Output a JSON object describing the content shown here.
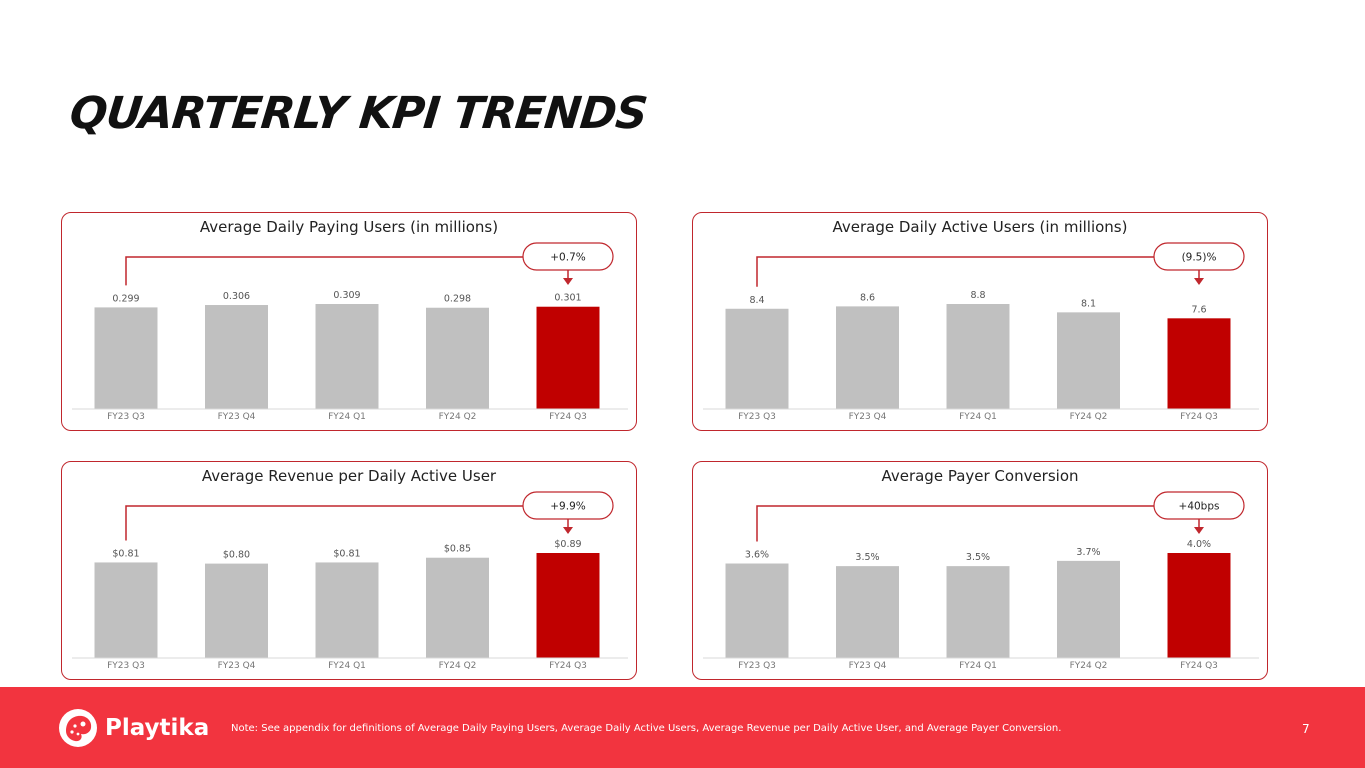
{
  "page": {
    "title": "QUARTERLY KPI TRENDS",
    "note": "Note:  See appendix for definitions of Average Daily Paying Users, Average Daily Active Users, Average Revenue per Daily Active User, and Average Payer Conversion.",
    "page_number": "7",
    "brand": "Playtika"
  },
  "colors": {
    "bar_default": "#c0c0c0",
    "bar_highlight": "#c00000",
    "panel_border": "#c0272d",
    "footer": "#f2343f"
  },
  "chart_data": [
    {
      "type": "bar",
      "title": "Average Daily Paying Users (in millions)",
      "categories": [
        "FY23 Q3",
        "FY23 Q4",
        "FY24 Q1",
        "FY24 Q2",
        "FY24 Q3"
      ],
      "values": [
        0.299,
        0.306,
        0.309,
        0.298,
        0.301
      ],
      "labels": [
        "0.299",
        "0.306",
        "0.309",
        "0.298",
        "0.301"
      ],
      "highlight_index": 4,
      "change_label": "+0.7%",
      "ylim": [
        0,
        0.309
      ]
    },
    {
      "type": "bar",
      "title": "Average Daily Active Users (in millions)",
      "categories": [
        "FY23 Q3",
        "FY23 Q4",
        "FY24 Q1",
        "FY24 Q2",
        "FY24 Q3"
      ],
      "values": [
        8.4,
        8.6,
        8.8,
        8.1,
        7.6
      ],
      "labels": [
        "8.4",
        "8.6",
        "8.8",
        "8.1",
        "7.6"
      ],
      "highlight_index": 4,
      "change_label": "(9.5)%",
      "ylim": [
        0,
        8.8
      ]
    },
    {
      "type": "bar",
      "title": "Average Revenue per Daily Active User",
      "categories": [
        "FY23 Q3",
        "FY23 Q4",
        "FY24 Q1",
        "FY24 Q2",
        "FY24 Q3"
      ],
      "values": [
        0.81,
        0.8,
        0.81,
        0.85,
        0.89
      ],
      "labels": [
        "$0.81",
        "$0.80",
        "$0.81",
        "$0.85",
        "$0.89"
      ],
      "highlight_index": 4,
      "change_label": "+9.9%",
      "ylim": [
        0,
        0.89
      ]
    },
    {
      "type": "bar",
      "title": "Average Payer Conversion",
      "categories": [
        "FY23 Q3",
        "FY23 Q4",
        "FY24 Q1",
        "FY24 Q2",
        "FY24 Q3"
      ],
      "values": [
        3.6,
        3.5,
        3.5,
        3.7,
        4.0
      ],
      "labels": [
        "3.6%",
        "3.5%",
        "3.5%",
        "3.7%",
        "4.0%"
      ],
      "highlight_index": 4,
      "change_label": "+40bps",
      "ylim": [
        0,
        4.0
      ]
    }
  ]
}
